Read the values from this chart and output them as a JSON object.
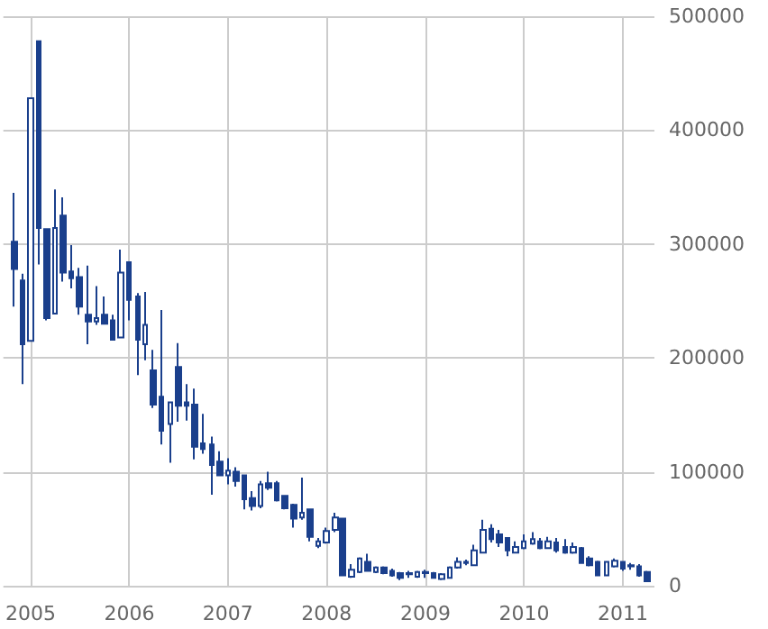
{
  "chart_data": {
    "type": "candlestick",
    "color": "#1a3f8c",
    "grid": true,
    "xlim": [
      "2004-09-22",
      "2011-04-28"
    ],
    "xticks": [
      "2005",
      "2006",
      "2007",
      "2008",
      "2009",
      "2010",
      "2011"
    ],
    "ylim": [
      0,
      500000
    ],
    "yticks": [
      0,
      100000,
      200000,
      300000,
      400000,
      500000
    ],
    "x": [
      "2004-11",
      "2004-12",
      "2005-01",
      "2005-02",
      "2005-03",
      "2005-04",
      "2005-05",
      "2005-06",
      "2005-07",
      "2005-08",
      "2005-09",
      "2005-10",
      "2005-11",
      "2005-12",
      "2006-01",
      "2006-02",
      "2006-03",
      "2006-04",
      "2006-05",
      "2006-06",
      "2006-07",
      "2006-08",
      "2006-09",
      "2006-10",
      "2006-11",
      "2006-12",
      "2007-01",
      "2007-02",
      "2007-03",
      "2007-04",
      "2007-05",
      "2007-06",
      "2007-07",
      "2007-08",
      "2007-09",
      "2007-10",
      "2007-11",
      "2007-12",
      "2008-01",
      "2008-02",
      "2008-03",
      "2008-04",
      "2008-05",
      "2008-06",
      "2008-07",
      "2008-08",
      "2008-09",
      "2008-10",
      "2008-11",
      "2008-12",
      "2009-01",
      "2009-02",
      "2009-03",
      "2009-04",
      "2009-05",
      "2009-06",
      "2009-07",
      "2009-08",
      "2009-09",
      "2009-10",
      "2009-11",
      "2009-12",
      "2010-01",
      "2010-02",
      "2010-03",
      "2010-04",
      "2010-05",
      "2010-06",
      "2010-07",
      "2010-08",
      "2010-09",
      "2010-10",
      "2010-11",
      "2010-12",
      "2011-01",
      "2011-02",
      "2011-03",
      "2011-04"
    ],
    "ohlc": [
      [
        302000,
        345000,
        245000,
        278000
      ],
      [
        268000,
        274000,
        177000,
        212000
      ],
      [
        215000,
        428000,
        215000,
        428000
      ],
      [
        478000,
        478000,
        282000,
        314000
      ],
      [
        313000,
        313000,
        233000,
        235000
      ],
      [
        239000,
        348000,
        239000,
        314000
      ],
      [
        325000,
        341000,
        267000,
        275000
      ],
      [
        276000,
        299000,
        261000,
        270000
      ],
      [
        271000,
        279000,
        238000,
        245000
      ],
      [
        238000,
        281000,
        212000,
        232000
      ],
      [
        232000,
        263000,
        229000,
        235000
      ],
      [
        238000,
        254000,
        230000,
        230000
      ],
      [
        233000,
        238000,
        216000,
        216000
      ],
      [
        218000,
        295000,
        218000,
        275000
      ],
      [
        284000,
        284000,
        233000,
        251000
      ],
      [
        254000,
        257000,
        185000,
        216000
      ],
      [
        212000,
        258000,
        198000,
        229000
      ],
      [
        189000,
        207000,
        156000,
        159000
      ],
      [
        166000,
        242000,
        124000,
        136000
      ],
      [
        142000,
        161000,
        108000,
        161000
      ],
      [
        192000,
        213000,
        144000,
        158000
      ],
      [
        161000,
        177000,
        145000,
        158000
      ],
      [
        159000,
        173000,
        111000,
        122000
      ],
      [
        125000,
        151000,
        116000,
        120000
      ],
      [
        124000,
        131000,
        80000,
        106000
      ],
      [
        109000,
        118000,
        97000,
        97000
      ],
      [
        97000,
        112000,
        89000,
        101000
      ],
      [
        100000,
        104000,
        87000,
        92000
      ],
      [
        97000,
        97000,
        67000,
        76000
      ],
      [
        77000,
        83000,
        66000,
        70000
      ],
      [
        70000,
        92000,
        68000,
        89000
      ],
      [
        90000,
        100000,
        84000,
        86000
      ],
      [
        90000,
        92000,
        74000,
        75000
      ],
      [
        79000,
        79000,
        67000,
        68000
      ],
      [
        71000,
        72000,
        51000,
        59000
      ],
      [
        60000,
        95000,
        58000,
        64000
      ],
      [
        67000,
        67000,
        39000,
        43000
      ],
      [
        35000,
        42000,
        33000,
        39000
      ],
      [
        38000,
        51000,
        37000,
        48000
      ],
      [
        49000,
        64000,
        47000,
        60000
      ],
      [
        59000,
        59000,
        9000,
        9000
      ],
      [
        8000,
        19000,
        7000,
        14000
      ],
      [
        12000,
        25000,
        11000,
        24000
      ],
      [
        21000,
        28000,
        13000,
        13000
      ],
      [
        12000,
        17000,
        11000,
        16000
      ],
      [
        16000,
        17000,
        10000,
        11000
      ],
      [
        13000,
        15000,
        8000,
        9000
      ],
      [
        11000,
        12000,
        5000,
        7000
      ],
      [
        10000,
        13000,
        7000,
        11000
      ],
      [
        8000,
        13000,
        7000,
        12000
      ],
      [
        11000,
        14000,
        7000,
        12000
      ],
      [
        11000,
        12000,
        7000,
        7000
      ],
      [
        6000,
        11000,
        5000,
        10000
      ],
      [
        7000,
        17000,
        7000,
        16000
      ],
      [
        16000,
        25000,
        15000,
        21000
      ],
      [
        20000,
        23000,
        18000,
        21000
      ],
      [
        18000,
        36000,
        18000,
        31000
      ],
      [
        29000,
        58000,
        29000,
        49000
      ],
      [
        50000,
        54000,
        38000,
        41000
      ],
      [
        45000,
        49000,
        34000,
        38000
      ],
      [
        42000,
        42000,
        26000,
        31000
      ],
      [
        29000,
        39000,
        29000,
        34000
      ],
      [
        33000,
        45000,
        32000,
        39000
      ],
      [
        37000,
        47000,
        36000,
        41000
      ],
      [
        39000,
        42000,
        32000,
        33000
      ],
      [
        33000,
        43000,
        33000,
        39000
      ],
      [
        38000,
        42000,
        29000,
        31000
      ],
      [
        34000,
        41000,
        28000,
        29000
      ],
      [
        29000,
        38000,
        28000,
        34000
      ],
      [
        33000,
        34000,
        20000,
        20000
      ],
      [
        24000,
        26000,
        17000,
        18000
      ],
      [
        21000,
        22000,
        9000,
        9000
      ],
      [
        9000,
        21000,
        9000,
        21000
      ],
      [
        17000,
        24000,
        16000,
        22000
      ],
      [
        21000,
        21000,
        13000,
        15000
      ],
      [
        18000,
        20000,
        14000,
        17000
      ],
      [
        17000,
        19000,
        8000,
        9000
      ],
      [
        12000,
        13000,
        4000,
        4000
      ]
    ]
  }
}
